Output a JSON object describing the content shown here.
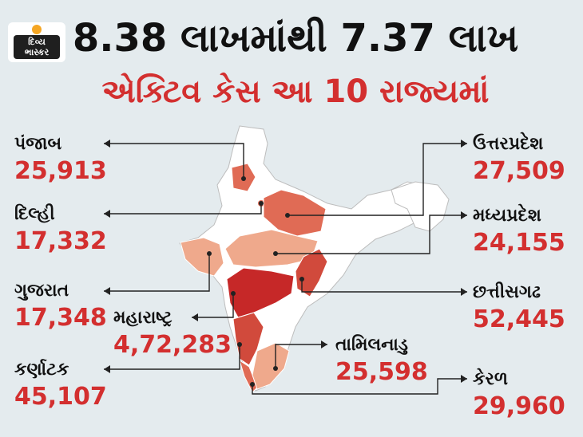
{
  "brand": {
    "line1": "દિવ્ય",
    "line2": "ભાસ્કર"
  },
  "header": {
    "title": "8.38 લાખમાંથી 7.37 લાખ",
    "subtitle": "એક્ટિવ કેસ આ 10 રાજ્યમાં"
  },
  "states": [
    {
      "name": "પંજાબ",
      "cases": "25,913"
    },
    {
      "name": "દિલ્હી",
      "cases": "17,332"
    },
    {
      "name": "ગુજરાત",
      "cases": "17,348"
    },
    {
      "name": "મહારાષ્ટ્ર",
      "cases": "4,72,283"
    },
    {
      "name": "કર્ણાટક",
      "cases": "45,107"
    },
    {
      "name": "ઉત્તરપ્રદેશ",
      "cases": "27,509"
    },
    {
      "name": "મધ્યપ્રદેશ",
      "cases": "24,155"
    },
    {
      "name": "છત્તીસગઢ",
      "cases": "52,445"
    },
    {
      "name": "તામિલનાડુ",
      "cases": "25,598"
    },
    {
      "name": "કેરળ",
      "cases": "29,960"
    }
  ],
  "colors": {
    "background": "#e4ebee",
    "title": "#111111",
    "accent": "#d32f2f",
    "map_base": "#ffffff",
    "shade_dark": "#c62828",
    "shade_mid": "#e06b55",
    "shade_light": "#efa98c"
  }
}
